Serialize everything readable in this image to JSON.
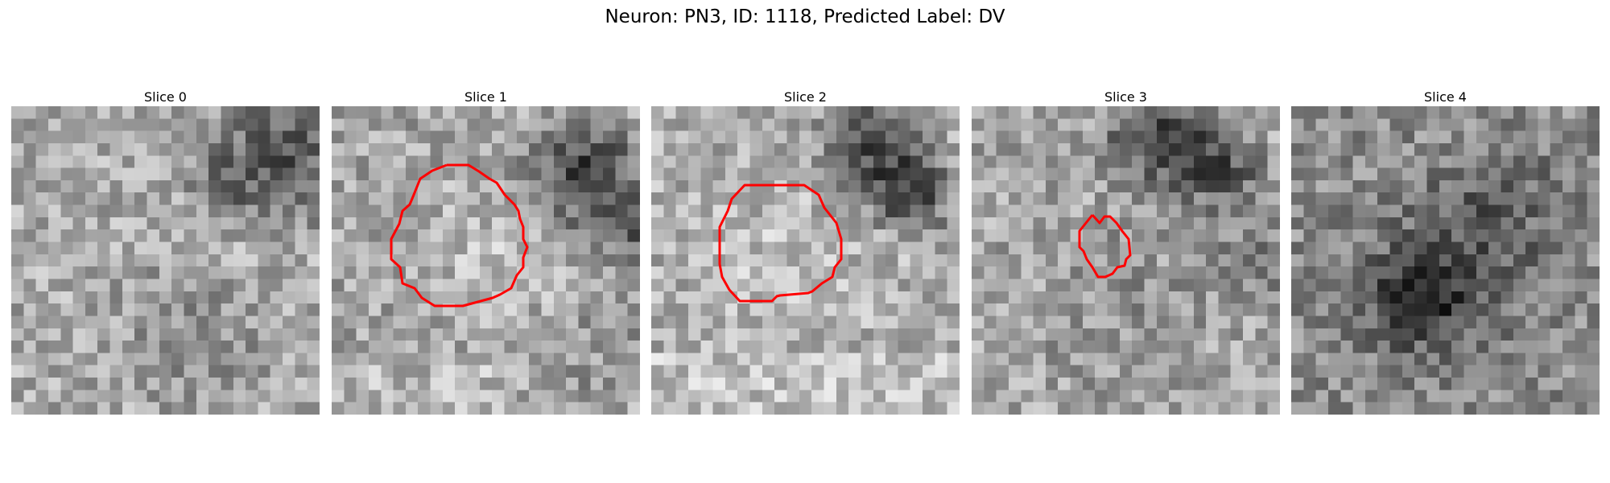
{
  "figure": {
    "title": "Neuron: PN3, ID: 1118, Predicted Label: DV"
  },
  "panels": [
    {
      "title": "Slice 0",
      "has_contour": false
    },
    {
      "title": "Slice 1",
      "has_contour": true
    },
    {
      "title": "Slice 2",
      "has_contour": true
    },
    {
      "title": "Slice 3",
      "has_contour": true
    },
    {
      "title": "Slice 4",
      "has_contour": false
    }
  ],
  "colors": {
    "contour": "#ff0000",
    "background": "#ffffff"
  },
  "image_style": "grayscale pixelated noise"
}
